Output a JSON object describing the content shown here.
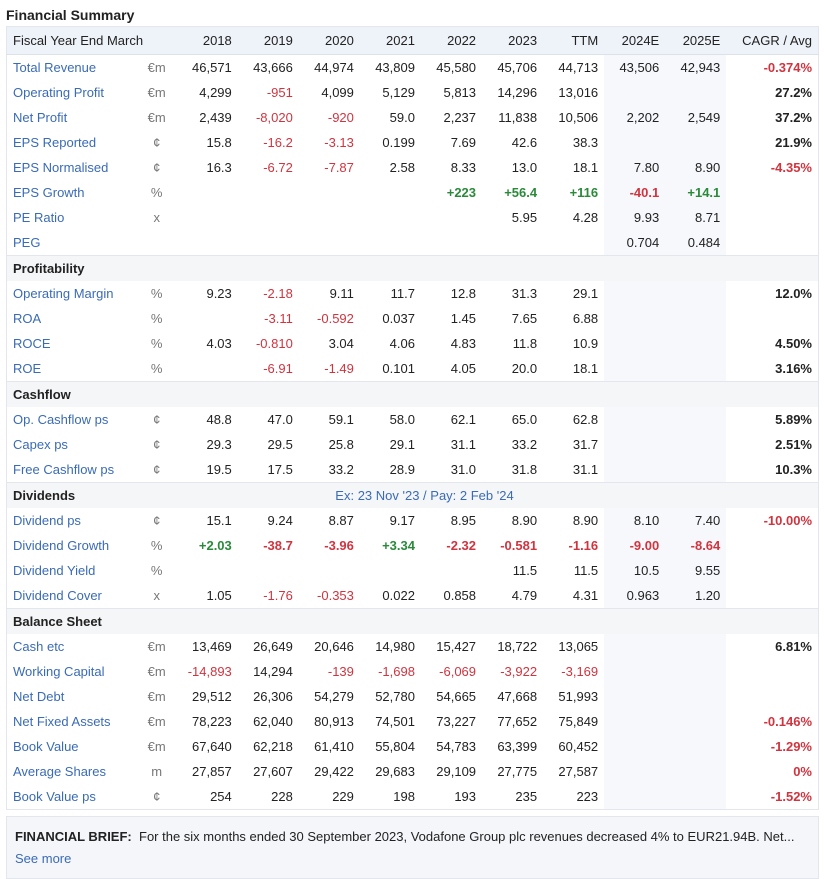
{
  "title": "Financial Summary",
  "header": {
    "label": "Fiscal Year End March",
    "columns": [
      "2018",
      "2019",
      "2020",
      "2021",
      "2022",
      "2023",
      "TTM",
      "2024E",
      "2025E",
      "CAGR / Avg"
    ]
  },
  "colors": {
    "link": "#3a6bb5",
    "negative": "#d0343f",
    "positive": "#2a8a3a",
    "header_bg": "#eef2f9",
    "forecast_bg": "#f6f8fc"
  },
  "sections": [
    {
      "name": "",
      "note": "",
      "rows": [
        {
          "label": "Total Revenue",
          "unit": "€m",
          "values": [
            "46,571",
            "43,666",
            "44,974",
            "43,809",
            "45,580",
            "45,706",
            "44,713",
            "43,506",
            "42,943"
          ],
          "cagr": "-0.374%"
        },
        {
          "label": "Operating Profit",
          "unit": "€m",
          "values": [
            "4,299",
            "-951",
            "4,099",
            "5,129",
            "5,813",
            "14,296",
            "13,016",
            "",
            ""
          ],
          "cagr": "27.2%"
        },
        {
          "label": "Net Profit",
          "unit": "€m",
          "values": [
            "2,439",
            "-8,020",
            "-920",
            "59.0",
            "2,237",
            "11,838",
            "10,506",
            "2,202",
            "2,549"
          ],
          "cagr": "37.2%"
        },
        {
          "label": "EPS Reported",
          "unit": "¢",
          "values": [
            "15.8",
            "-16.2",
            "-3.13",
            "0.199",
            "7.69",
            "42.6",
            "38.3",
            "",
            ""
          ],
          "cagr": "21.9%"
        },
        {
          "label": "EPS Normalised",
          "unit": "¢",
          "values": [
            "16.3",
            "-6.72",
            "-7.87",
            "2.58",
            "8.33",
            "13.0",
            "18.1",
            "7.80",
            "8.90"
          ],
          "cagr": "-4.35%"
        },
        {
          "label": "EPS Growth",
          "unit": "%",
          "bold": true,
          "values": [
            "",
            "",
            "",
            "",
            "+223",
            "+56.4",
            "+116",
            "-40.1",
            "+14.1"
          ],
          "cagr": ""
        },
        {
          "label": "PE Ratio",
          "unit": "x",
          "values": [
            "",
            "",
            "",
            "",
            "",
            "5.95",
            "4.28",
            "9.93",
            "8.71"
          ],
          "cagr": ""
        },
        {
          "label": "PEG",
          "unit": "",
          "values": [
            "",
            "",
            "",
            "",
            "",
            "",
            "",
            "0.704",
            "0.484"
          ],
          "cagr": ""
        }
      ]
    },
    {
      "name": "Profitability",
      "note": "",
      "rows": [
        {
          "label": "Operating Margin",
          "unit": "%",
          "values": [
            "9.23",
            "-2.18",
            "9.11",
            "11.7",
            "12.8",
            "31.3",
            "29.1",
            "",
            ""
          ],
          "cagr": "12.0%"
        },
        {
          "label": "ROA",
          "unit": "%",
          "values": [
            "",
            "-3.11",
            "-0.592",
            "0.037",
            "1.45",
            "7.65",
            "6.88",
            "",
            ""
          ],
          "cagr": ""
        },
        {
          "label": "ROCE",
          "unit": "%",
          "values": [
            "4.03",
            "-0.810",
            "3.04",
            "4.06",
            "4.83",
            "11.8",
            "10.9",
            "",
            ""
          ],
          "cagr": "4.50%"
        },
        {
          "label": "ROE",
          "unit": "%",
          "values": [
            "",
            "-6.91",
            "-1.49",
            "0.101",
            "4.05",
            "20.0",
            "18.1",
            "",
            ""
          ],
          "cagr": "3.16%"
        }
      ]
    },
    {
      "name": "Cashflow",
      "note": "",
      "rows": [
        {
          "label": "Op. Cashflow ps",
          "unit": "¢",
          "values": [
            "48.8",
            "47.0",
            "59.1",
            "58.0",
            "62.1",
            "65.0",
            "62.8",
            "",
            ""
          ],
          "cagr": "5.89%"
        },
        {
          "label": "Capex ps",
          "unit": "¢",
          "values": [
            "29.3",
            "29.5",
            "25.8",
            "29.1",
            "31.1",
            "33.2",
            "31.7",
            "",
            ""
          ],
          "cagr": "2.51%"
        },
        {
          "label": "Free Cashflow ps",
          "unit": "¢",
          "values": [
            "19.5",
            "17.5",
            "33.2",
            "28.9",
            "31.0",
            "31.8",
            "31.1",
            "",
            ""
          ],
          "cagr": "10.3%"
        }
      ]
    },
    {
      "name": "Dividends",
      "note": "Ex: 23 Nov '23 / Pay: 2 Feb '24",
      "rows": [
        {
          "label": "Dividend ps",
          "unit": "¢",
          "values": [
            "15.1",
            "9.24",
            "8.87",
            "9.17",
            "8.95",
            "8.90",
            "8.90",
            "8.10",
            "7.40"
          ],
          "cagr": "-10.00%"
        },
        {
          "label": "Dividend Growth",
          "unit": "%",
          "bold": true,
          "values": [
            "+2.03",
            "-38.7",
            "-3.96",
            "+3.34",
            "-2.32",
            "-0.581",
            "-1.16",
            "-9.00",
            "-8.64"
          ],
          "cagr": ""
        },
        {
          "label": "Dividend Yield",
          "unit": "%",
          "values": [
            "",
            "",
            "",
            "",
            "",
            "11.5",
            "11.5",
            "10.5",
            "9.55"
          ],
          "cagr": ""
        },
        {
          "label": "Dividend Cover",
          "unit": "x",
          "values": [
            "1.05",
            "-1.76",
            "-0.353",
            "0.022",
            "0.858",
            "4.79",
            "4.31",
            "0.963",
            "1.20"
          ],
          "cagr": ""
        }
      ]
    },
    {
      "name": "Balance Sheet",
      "note": "",
      "rows": [
        {
          "label": "Cash etc",
          "unit": "€m",
          "values": [
            "13,469",
            "26,649",
            "20,646",
            "14,980",
            "15,427",
            "18,722",
            "13,065",
            "",
            ""
          ],
          "cagr": "6.81%"
        },
        {
          "label": "Working Capital",
          "unit": "€m",
          "values": [
            "-14,893",
            "14,294",
            "-139",
            "-1,698",
            "-6,069",
            "-3,922",
            "-3,169",
            "",
            ""
          ],
          "cagr": ""
        },
        {
          "label": "Net Debt",
          "unit": "€m",
          "values": [
            "29,512",
            "26,306",
            "54,279",
            "52,780",
            "54,665",
            "47,668",
            "51,993",
            "",
            ""
          ],
          "cagr": ""
        },
        {
          "label": "Net Fixed Assets",
          "unit": "€m",
          "values": [
            "78,223",
            "62,040",
            "80,913",
            "74,501",
            "73,227",
            "77,652",
            "75,849",
            "",
            ""
          ],
          "cagr": "-0.146%"
        },
        {
          "label": "Book Value",
          "unit": "€m",
          "values": [
            "67,640",
            "62,218",
            "61,410",
            "55,804",
            "54,783",
            "63,399",
            "60,452",
            "",
            ""
          ],
          "cagr": "-1.29%"
        },
        {
          "label": "Average Shares",
          "unit": "m",
          "values": [
            "27,857",
            "27,607",
            "29,422",
            "29,683",
            "29,109",
            "27,775",
            "27,587",
            "",
            ""
          ],
          "cagr": "0%"
        },
        {
          "label": "Book Value ps",
          "unit": "¢",
          "values": [
            "254",
            "228",
            "229",
            "198",
            "193",
            "235",
            "223",
            "",
            ""
          ],
          "cagr": "-1.52%"
        }
      ]
    }
  ],
  "brief": {
    "label": "FINANCIAL BRIEF:",
    "text": "For the six months ended 30 September 2023, Vodafone Group plc revenues decreased 4% to EUR21.94B. Net...",
    "link": "See more"
  }
}
